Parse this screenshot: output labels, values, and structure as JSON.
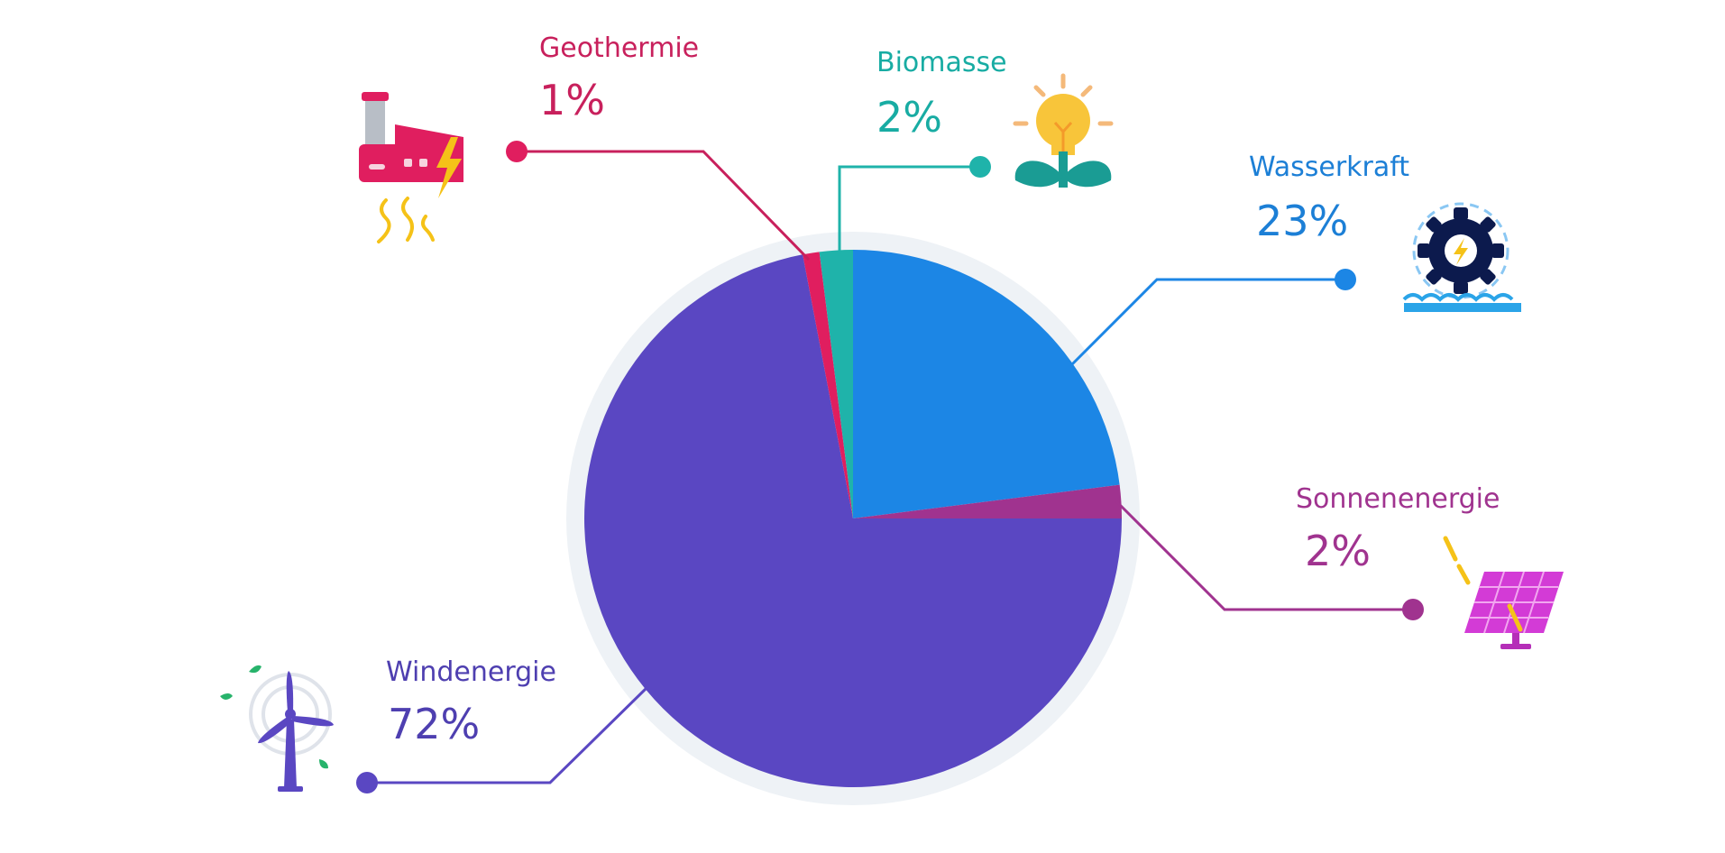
{
  "chart_data": {
    "type": "pie",
    "title": "",
    "start_angle_deg": 0,
    "direction": "clockwise",
    "slices": [
      {
        "label": "Wasserkraft",
        "value": 23,
        "display": "23%",
        "color": "#1c86e5",
        "icon": "water-turbine-icon"
      },
      {
        "label": "Sonnenenergie",
        "value": 2,
        "display": "2%",
        "color": "#a0338f",
        "icon": "solar-panel-icon"
      },
      {
        "label": "Windenergie",
        "value": 72,
        "display": "72%",
        "color": "#5a47c2",
        "icon": "wind-turbine-icon"
      },
      {
        "label": "Geothermie",
        "value": 1,
        "display": "1%",
        "color": "#e01e5f",
        "icon": "power-plant-icon"
      },
      {
        "label": "Biomasse",
        "value": 2,
        "display": "2%",
        "color": "#1fb3aa",
        "icon": "plant-bulb-icon"
      }
    ]
  },
  "colors": {
    "ring": "#eef2f6",
    "wasserkraft_text": "#1c7fd6",
    "sonnenenergie_text": "#a0338f",
    "windenergie_text": "#4e3fb0",
    "geothermie_text": "#c8205c",
    "biomasse_text": "#18aca3"
  }
}
